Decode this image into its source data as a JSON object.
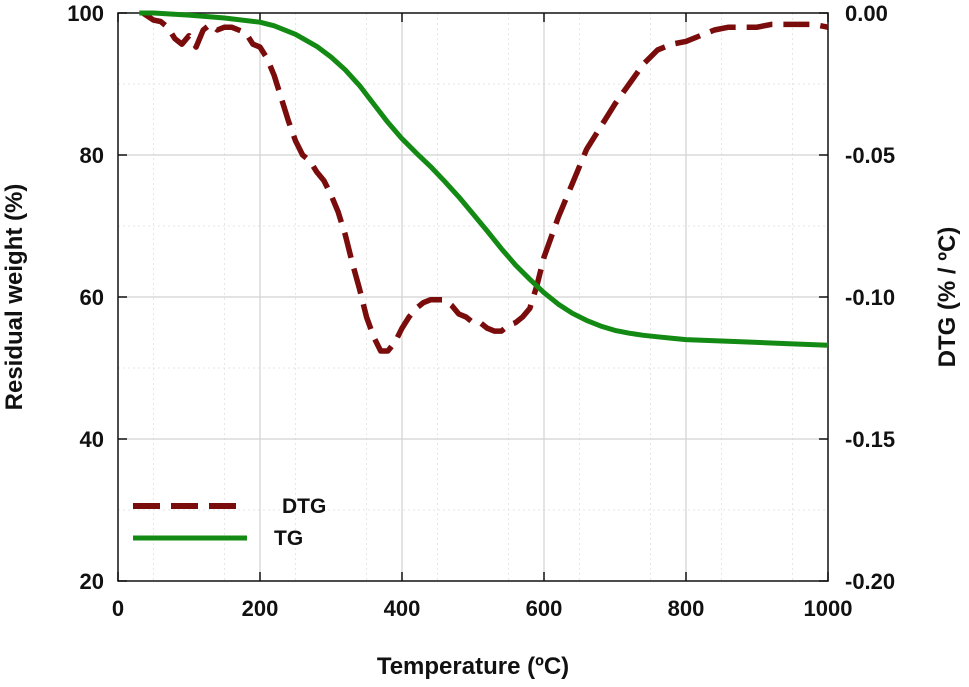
{
  "chart_data": {
    "type": "line",
    "xlabel": "Temperature (ºC)",
    "ylabel": "Residual weight (%)",
    "y2label": "DTG (% / ºC)",
    "xlim": [
      0,
      1000
    ],
    "ylim": [
      20,
      100
    ],
    "y2lim": [
      -0.2,
      0
    ],
    "xticks": [
      "0",
      "200",
      "400",
      "600",
      "800",
      "1000"
    ],
    "yticks": [
      "20",
      "40",
      "60",
      "80",
      "100"
    ],
    "y2ticks": [
      "-0.20",
      "-0.15",
      "-0.10",
      "-0.05",
      "0.00"
    ],
    "grid": true,
    "legend_position": "bottom-left",
    "series": [
      {
        "name": "DTG",
        "axis": "right",
        "style": "dashed",
        "color": "#7a0c0c",
        "x": [
          35,
          50,
          60,
          70,
          80,
          90,
          100,
          110,
          120,
          130,
          140,
          150,
          160,
          170,
          180,
          190,
          200,
          210,
          220,
          230,
          240,
          250,
          260,
          270,
          280,
          290,
          300,
          310,
          320,
          330,
          340,
          350,
          360,
          370,
          380,
          390,
          400,
          410,
          420,
          430,
          440,
          450,
          460,
          470,
          480,
          490,
          500,
          510,
          520,
          530,
          540,
          550,
          560,
          570,
          580,
          590,
          600,
          620,
          640,
          660,
          680,
          700,
          720,
          740,
          760,
          780,
          800,
          820,
          840,
          860,
          880,
          900,
          920,
          940,
          960,
          980,
          1000
        ],
        "y": [
          0.0,
          -0.0025,
          -0.003,
          -0.005,
          -0.009,
          -0.011,
          -0.008,
          -0.012,
          -0.006,
          -0.004,
          -0.006,
          -0.005,
          -0.005,
          -0.006,
          -0.007,
          -0.011,
          -0.012,
          -0.016,
          -0.022,
          -0.03,
          -0.038,
          -0.045,
          -0.05,
          -0.052,
          -0.056,
          -0.059,
          -0.064,
          -0.07,
          -0.078,
          -0.088,
          -0.097,
          -0.107,
          -0.114,
          -0.119,
          -0.119,
          -0.116,
          -0.111,
          -0.107,
          -0.104,
          -0.102,
          -0.101,
          -0.101,
          -0.101,
          -0.103,
          -0.106,
          -0.107,
          -0.109,
          -0.109,
          -0.111,
          -0.112,
          -0.112,
          -0.11,
          -0.109,
          -0.107,
          -0.104,
          -0.096,
          -0.086,
          -0.072,
          -0.06,
          -0.048,
          -0.04,
          -0.032,
          -0.025,
          -0.018,
          -0.013,
          -0.011,
          -0.01,
          -0.008,
          -0.006,
          -0.005,
          -0.005,
          -0.005,
          -0.004,
          -0.004,
          -0.004,
          -0.004,
          -0.005
        ]
      },
      {
        "name": "TG",
        "axis": "left",
        "style": "solid",
        "color": "#138a13",
        "x": [
          30,
          50,
          100,
          150,
          200,
          220,
          250,
          280,
          300,
          320,
          340,
          360,
          380,
          400,
          420,
          440,
          460,
          480,
          500,
          520,
          540,
          560,
          580,
          600,
          620,
          640,
          660,
          680,
          700,
          720,
          740,
          760,
          780,
          800,
          850,
          900,
          950,
          1000
        ],
        "y": [
          100,
          100,
          99.7,
          99.3,
          98.7,
          98.2,
          97.0,
          95.3,
          93.8,
          92.0,
          89.8,
          87.2,
          84.6,
          82.3,
          80.3,
          78.4,
          76.3,
          74.1,
          71.7,
          69.3,
          66.8,
          64.5,
          62.5,
          60.6,
          59.0,
          57.7,
          56.7,
          55.9,
          55.3,
          54.9,
          54.6,
          54.4,
          54.2,
          54.0,
          53.8,
          53.6,
          53.4,
          53.2
        ]
      }
    ]
  }
}
